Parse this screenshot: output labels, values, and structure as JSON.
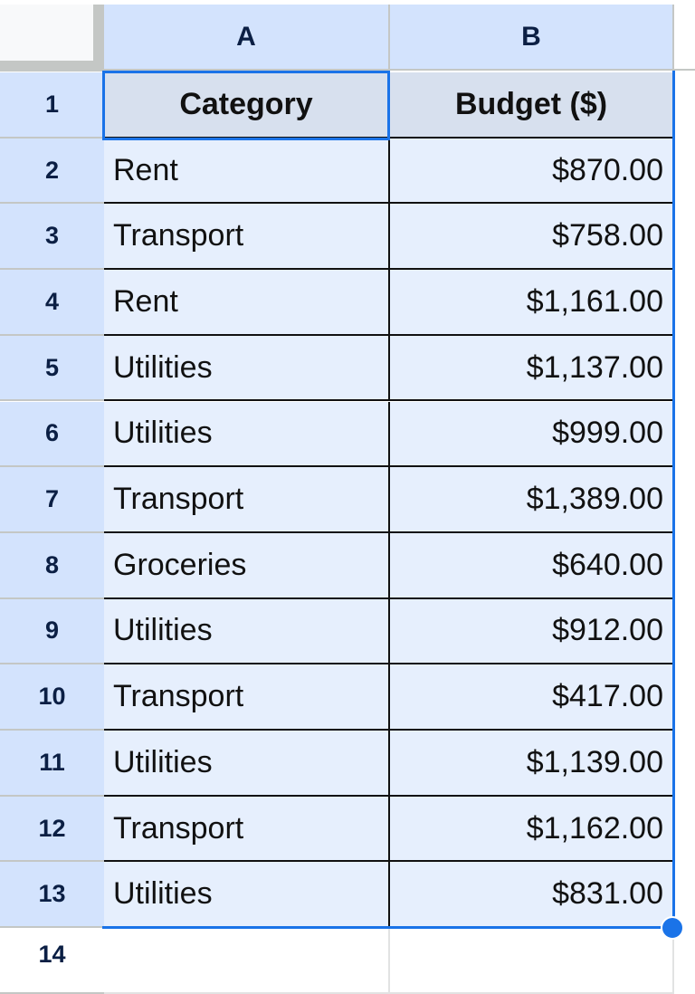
{
  "columns": [
    "A",
    "B"
  ],
  "header_row": {
    "row_number": "1",
    "category": "Category",
    "budget": "Budget ($)"
  },
  "rows": [
    {
      "n": "2",
      "category": "Rent",
      "budget": "$870.00"
    },
    {
      "n": "3",
      "category": "Transport",
      "budget": "$758.00"
    },
    {
      "n": "4",
      "category": "Rent",
      "budget": "$1,161.00"
    },
    {
      "n": "5",
      "category": "Utilities",
      "budget": "$1,137.00"
    },
    {
      "n": "6",
      "category": "Utilities",
      "budget": "$999.00"
    },
    {
      "n": "7",
      "category": "Transport",
      "budget": "$1,389.00"
    },
    {
      "n": "8",
      "category": "Groceries",
      "budget": "$640.00"
    },
    {
      "n": "9",
      "category": "Utilities",
      "budget": "$912.00"
    },
    {
      "n": "10",
      "category": "Transport",
      "budget": "$417.00"
    },
    {
      "n": "11",
      "category": "Utilities",
      "budget": "$1,139.00"
    },
    {
      "n": "12",
      "category": "Transport",
      "budget": "$1,162.00"
    },
    {
      "n": "13",
      "category": "Utilities",
      "budget": "$831.00"
    }
  ],
  "next_row_number": "14",
  "colors": {
    "selection": "#1a73e8",
    "header_bg": "#d3e3fd",
    "cell_bg": "#e6effd"
  }
}
